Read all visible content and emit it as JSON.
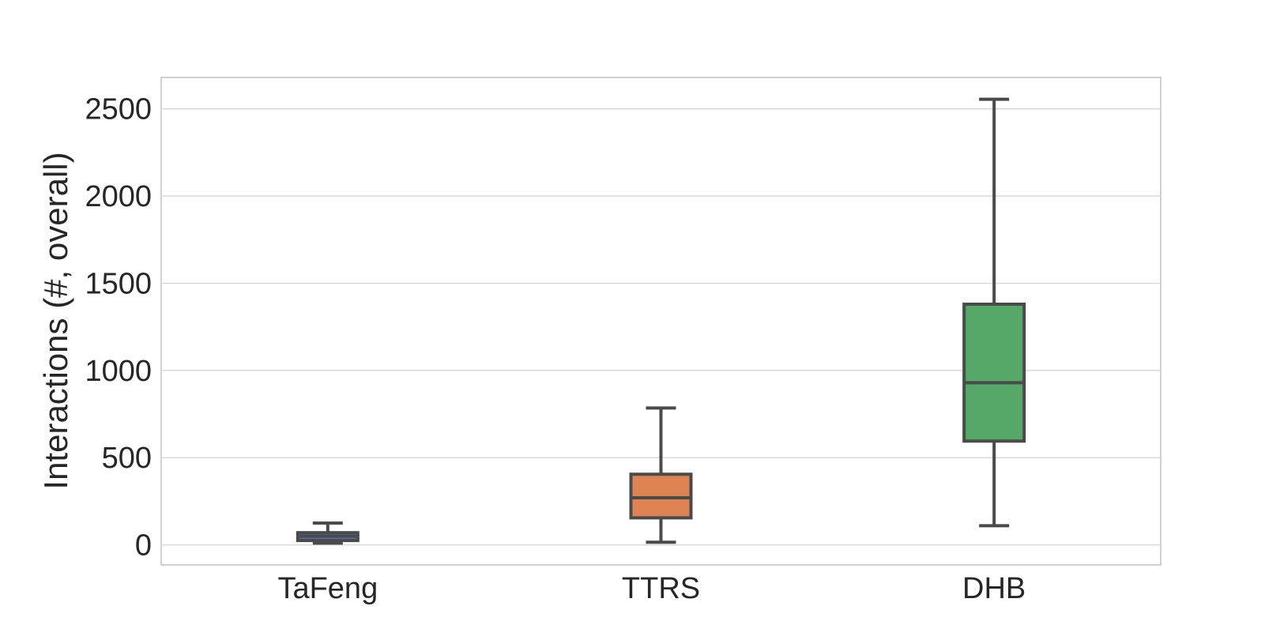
{
  "chart_data": {
    "type": "box",
    "title": "",
    "xlabel": "",
    "ylabel": "Interactions (#, overall)",
    "ylim": [
      -115,
      2680
    ],
    "yticks": [
      0,
      500,
      1000,
      1500,
      2000,
      2500
    ],
    "ytick_labels": [
      "0",
      "500",
      "1000",
      "1500",
      "2000",
      "2500"
    ],
    "grid": "horizontal",
    "categories": [
      "TaFeng",
      "TTRS",
      "DHB"
    ],
    "colors": [
      "#4c72b0",
      "#dd8452",
      "#55a868"
    ],
    "boxes": [
      {
        "category": "TaFeng",
        "whisker_low": 10,
        "q1": 25,
        "median": 50,
        "q3": 70,
        "whisker_high": 125
      },
      {
        "category": "TTRS",
        "whisker_low": 15,
        "q1": 155,
        "median": 270,
        "q3": 405,
        "whisker_high": 785
      },
      {
        "category": "DHB",
        "whisker_low": 110,
        "q1": 595,
        "median": 930,
        "q3": 1380,
        "whisker_high": 2555
      }
    ]
  }
}
